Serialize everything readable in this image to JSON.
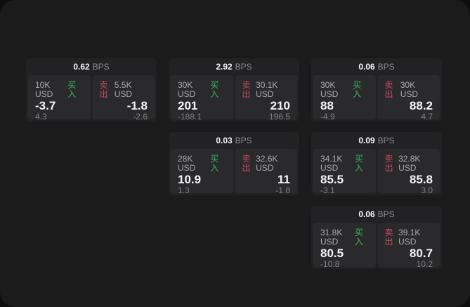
{
  "labels": {
    "bps_unit": "BPS",
    "buy": "买入",
    "sell": "卖出"
  },
  "colors": {
    "buy_accent": "#3db263",
    "sell_accent": "#c74b63",
    "window_bg": "#1b1b1c",
    "card_bg": "#222224",
    "panel_bg": "#2a2a2c"
  },
  "cards": [
    {
      "bps": "0.62",
      "buy": {
        "amount": "10K USD",
        "value": "-3.7",
        "delta": "4.3"
      },
      "sell": {
        "amount": "5.5K USD",
        "value": "-1.8",
        "delta": "-2.6"
      }
    },
    {
      "bps": "2.92",
      "buy": {
        "amount": "30K USD",
        "value": "201",
        "delta": "-188.1"
      },
      "sell": {
        "amount": "30.1K USD",
        "value": "210",
        "delta": "196.5"
      }
    },
    {
      "bps": "0.06",
      "buy": {
        "amount": "30K USD",
        "value": "88",
        "delta": "-4.9"
      },
      "sell": {
        "amount": "30K USD",
        "value": "88.2",
        "delta": "4.7"
      }
    },
    {
      "bps": "0.03",
      "buy": {
        "amount": "28K USD",
        "value": "10.9",
        "delta": "1.3"
      },
      "sell": {
        "amount": "32.6K USD",
        "value": "11",
        "delta": "-1.8"
      }
    },
    {
      "bps": "0.09",
      "buy": {
        "amount": "34.1K USD",
        "value": "85.5",
        "delta": "-3.1"
      },
      "sell": {
        "amount": "32.8K USD",
        "value": "85.8",
        "delta": "3.0"
      }
    },
    {
      "bps": "0.06",
      "buy": {
        "amount": "31.8K USD",
        "value": "80.5",
        "delta": "-10.8"
      },
      "sell": {
        "amount": "39.1K USD",
        "value": "80.7",
        "delta": "10.2"
      }
    }
  ]
}
